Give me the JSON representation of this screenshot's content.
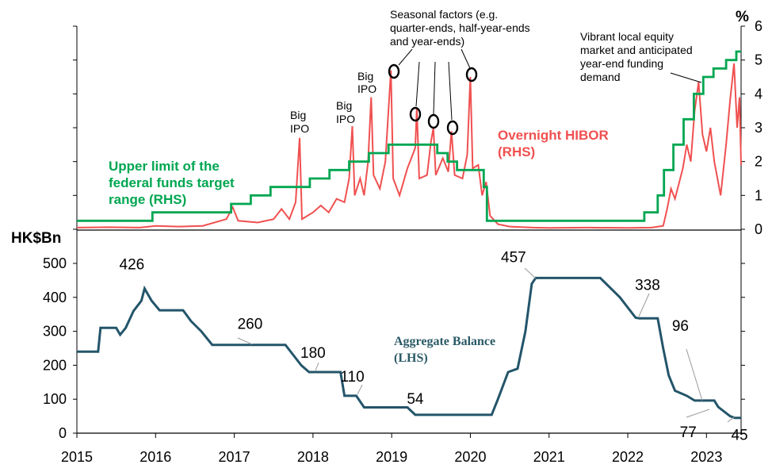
{
  "chart_data": [
    {
      "type": "line",
      "panel": "top",
      "ylabel": "%",
      "ylim": [
        0,
        6
      ],
      "y_ticks": [
        "0",
        "1",
        "2",
        "3",
        "4",
        "5",
        "6"
      ],
      "y_axis_side": "right",
      "series": [
        {
          "name": "Upper limit of the federal funds target range (RHS)",
          "color": "#00a651",
          "shape": "step",
          "points": [
            [
              2015.0,
              0.25
            ],
            [
              2015.96,
              0.5
            ],
            [
              2016.96,
              0.75
            ],
            [
              2017.21,
              1.0
            ],
            [
              2017.46,
              1.25
            ],
            [
              2017.96,
              1.5
            ],
            [
              2018.21,
              1.75
            ],
            [
              2018.46,
              2.0
            ],
            [
              2018.71,
              2.25
            ],
            [
              2018.96,
              2.5
            ],
            [
              2019.58,
              2.25
            ],
            [
              2019.71,
              2.0
            ],
            [
              2019.83,
              1.75
            ],
            [
              2020.17,
              1.25
            ],
            [
              2020.21,
              0.25
            ],
            [
              2022.21,
              0.5
            ],
            [
              2022.38,
              1.0
            ],
            [
              2022.46,
              1.75
            ],
            [
              2022.58,
              2.5
            ],
            [
              2022.71,
              3.25
            ],
            [
              2022.84,
              4.0
            ],
            [
              2022.96,
              4.5
            ],
            [
              2023.09,
              4.75
            ],
            [
              2023.25,
              5.0
            ],
            [
              2023.38,
              5.25
            ],
            [
              2023.44,
              5.25
            ]
          ]
        },
        {
          "name": "Overnight HIBOR (RHS)",
          "color": "#f05050",
          "points": [
            [
              2015.0,
              0.05
            ],
            [
              2015.4,
              0.06
            ],
            [
              2015.8,
              0.05
            ],
            [
              2016.0,
              0.1
            ],
            [
              2016.3,
              0.08
            ],
            [
              2016.6,
              0.1
            ],
            [
              2016.9,
              0.3
            ],
            [
              2016.98,
              0.65
            ],
            [
              2017.05,
              0.25
            ],
            [
              2017.3,
              0.2
            ],
            [
              2017.5,
              0.3
            ],
            [
              2017.6,
              0.6
            ],
            [
              2017.7,
              0.3
            ],
            [
              2017.78,
              0.8
            ],
            [
              2017.83,
              2.7
            ],
            [
              2017.86,
              0.3
            ],
            [
              2018.0,
              0.5
            ],
            [
              2018.1,
              0.7
            ],
            [
              2018.2,
              0.5
            ],
            [
              2018.3,
              0.9
            ],
            [
              2018.4,
              0.8
            ],
            [
              2018.46,
              1.5
            ],
            [
              2018.5,
              3.05
            ],
            [
              2018.53,
              1.0
            ],
            [
              2018.6,
              1.5
            ],
            [
              2018.65,
              1.0
            ],
            [
              2018.7,
              2.0
            ],
            [
              2018.74,
              3.9
            ],
            [
              2018.77,
              1.6
            ],
            [
              2018.85,
              1.2
            ],
            [
              2018.92,
              2.0
            ],
            [
              2018.99,
              4.7
            ],
            [
              2019.02,
              1.5
            ],
            [
              2019.1,
              1.0
            ],
            [
              2019.2,
              1.8
            ],
            [
              2019.3,
              2.4
            ],
            [
              2019.32,
              3.6
            ],
            [
              2019.35,
              1.5
            ],
            [
              2019.45,
              1.6
            ],
            [
              2019.5,
              2.6
            ],
            [
              2019.53,
              3.0
            ],
            [
              2019.56,
              1.6
            ],
            [
              2019.65,
              2.1
            ],
            [
              2019.72,
              1.7
            ],
            [
              2019.76,
              2.9
            ],
            [
              2019.8,
              1.6
            ],
            [
              2019.9,
              1.5
            ],
            [
              2019.96,
              2.2
            ],
            [
              2020.0,
              4.5
            ],
            [
              2020.03,
              1.8
            ],
            [
              2020.1,
              1.9
            ],
            [
              2020.15,
              1.0
            ],
            [
              2020.2,
              1.4
            ],
            [
              2020.25,
              0.4
            ],
            [
              2020.35,
              0.15
            ],
            [
              2020.5,
              0.08
            ],
            [
              2020.8,
              0.05
            ],
            [
              2021.0,
              0.04
            ],
            [
              2021.5,
              0.05
            ],
            [
              2022.0,
              0.04
            ],
            [
              2022.3,
              0.05
            ],
            [
              2022.45,
              0.1
            ],
            [
              2022.5,
              0.6
            ],
            [
              2022.55,
              1.2
            ],
            [
              2022.6,
              0.9
            ],
            [
              2022.7,
              1.8
            ],
            [
              2022.75,
              2.5
            ],
            [
              2022.8,
              2.0
            ],
            [
              2022.85,
              3.5
            ],
            [
              2022.9,
              4.35
            ],
            [
              2022.95,
              2.8
            ],
            [
              2023.0,
              2.3
            ],
            [
              2023.05,
              3.0
            ],
            [
              2023.1,
              2.0
            ],
            [
              2023.18,
              1.0
            ],
            [
              2023.25,
              2.5
            ],
            [
              2023.3,
              3.8
            ],
            [
              2023.35,
              4.9
            ],
            [
              2023.39,
              3.0
            ],
            [
              2023.42,
              3.9
            ],
            [
              2023.44,
              1.9
            ]
          ]
        }
      ],
      "labels": {
        "unit": "%",
        "green": [
          "Upper limit of the",
          "federal funds target",
          "range (RHS)"
        ],
        "red": [
          "Overnight HIBOR",
          "(RHS)"
        ],
        "seasonal": [
          "Seasonal factors (e.g.",
          "quarter-ends, half-year-ends",
          "and year-ends)"
        ],
        "vibrant": [
          "Vibrant local equity",
          "market and anticipated",
          "year-end funding",
          "demand"
        ],
        "big_ipo": [
          "Big",
          "IPO"
        ]
      }
    },
    {
      "type": "line",
      "panel": "bottom",
      "ylabel": "HK$Bn",
      "ylim": [
        0,
        600
      ],
      "y_ticks": [
        "0",
        "100",
        "200",
        "300",
        "400",
        "500"
      ],
      "x_ticks": [
        "2015",
        "2016",
        "2017",
        "2018",
        "2019",
        "2020",
        "2021",
        "2022",
        "2023"
      ],
      "xlim": [
        2015,
        2023.44
      ],
      "series": [
        {
          "name": "Aggregate Balance (LHS)",
          "color": "#23556a",
          "points": [
            [
              2015.0,
              240
            ],
            [
              2015.27,
              240
            ],
            [
              2015.3,
              310
            ],
            [
              2015.5,
              310
            ],
            [
              2015.55,
              290
            ],
            [
              2015.62,
              310
            ],
            [
              2015.72,
              360
            ],
            [
              2015.82,
              390
            ],
            [
              2015.86,
              426
            ],
            [
              2015.95,
              390
            ],
            [
              2016.05,
              362
            ],
            [
              2016.35,
              362
            ],
            [
              2016.45,
              330
            ],
            [
              2016.58,
              300
            ],
            [
              2016.72,
              260
            ],
            [
              2017.2,
              260
            ],
            [
              2017.65,
              260
            ],
            [
              2017.85,
              200
            ],
            [
              2017.95,
              180
            ],
            [
              2018.35,
              180
            ],
            [
              2018.4,
              110
            ],
            [
              2018.55,
              110
            ],
            [
              2018.65,
              76
            ],
            [
              2019.2,
              76
            ],
            [
              2019.3,
              54
            ],
            [
              2020.27,
              54
            ],
            [
              2020.35,
              100
            ],
            [
              2020.48,
              180
            ],
            [
              2020.6,
              190
            ],
            [
              2020.7,
              300
            ],
            [
              2020.78,
              440
            ],
            [
              2020.83,
              457
            ],
            [
              2021.65,
              457
            ],
            [
              2021.9,
              400
            ],
            [
              2022.1,
              340
            ],
            [
              2022.15,
              338
            ],
            [
              2022.38,
              338
            ],
            [
              2022.45,
              250
            ],
            [
              2022.52,
              170
            ],
            [
              2022.6,
              125
            ],
            [
              2022.75,
              110
            ],
            [
              2022.85,
              96
            ],
            [
              2023.1,
              96
            ],
            [
              2023.15,
              77
            ],
            [
              2023.3,
              50
            ],
            [
              2023.36,
              45
            ],
            [
              2023.44,
              45
            ]
          ]
        }
      ],
      "labels": {
        "unit": "HK$Bn",
        "series": [
          "Aggregate Balance",
          "(LHS)"
        ]
      },
      "data_labels": [
        {
          "text": "426",
          "x": 2015.86,
          "y": 426
        },
        {
          "text": "260",
          "x": 2017.2,
          "y": 260
        },
        {
          "text": "180",
          "x": 2018.0,
          "y": 180
        },
        {
          "text": "110",
          "x": 2018.5,
          "y": 110
        },
        {
          "text": "54",
          "x": 2019.3,
          "y": 54
        },
        {
          "text": "457",
          "x": 2020.83,
          "y": 457
        },
        {
          "text": "338",
          "x": 2022.15,
          "y": 338
        },
        {
          "text": "96",
          "x": 2022.85,
          "y": 96
        },
        {
          "text": "77",
          "x": 2023.15,
          "y": 77
        },
        {
          "text": "45",
          "x": 2023.36,
          "y": 45
        }
      ]
    }
  ]
}
